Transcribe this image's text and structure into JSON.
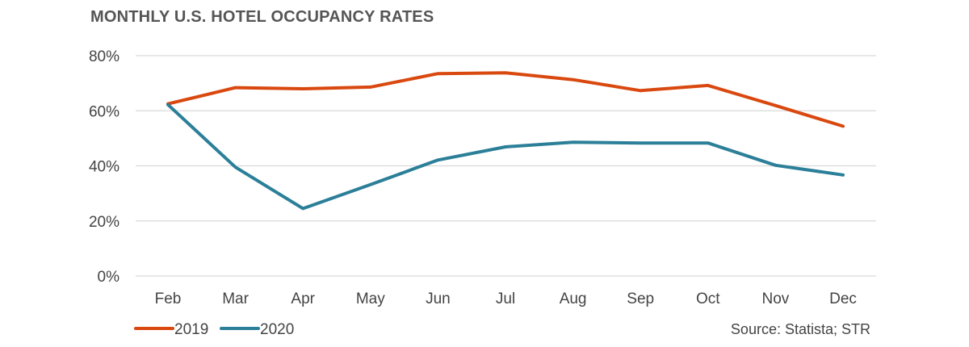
{
  "colors": {
    "series_2019": "#d9480f",
    "series_2020": "#2b7f98",
    "gridline": "#d9d9d9",
    "axis_text": "#444444",
    "title_text": "#555555"
  },
  "source_note": "Source: Statista; STR",
  "chart_data": {
    "type": "line",
    "title": "MONTHLY U.S. HOTEL OCCUPANCY RATES",
    "xlabel": "",
    "ylabel": "",
    "categories": [
      "Feb",
      "Mar",
      "Apr",
      "May",
      "Jun",
      "Jul",
      "Aug",
      "Sep",
      "Oct",
      "Nov",
      "Dec"
    ],
    "ylim": [
      0,
      80
    ],
    "yticks": [
      0,
      20,
      40,
      60,
      80
    ],
    "ytick_labels": [
      "0%",
      "20%",
      "40%",
      "60%",
      "80%"
    ],
    "grid": true,
    "legend_position": "bottom-left",
    "series": [
      {
        "name": "2019",
        "color": "#d9480f",
        "values": [
          62.5,
          68.4,
          68.0,
          68.6,
          73.5,
          73.8,
          71.3,
          67.3,
          69.2,
          61.9,
          54.4
        ]
      },
      {
        "name": "2020",
        "color": "#2b7f98",
        "values": [
          62.2,
          39.5,
          24.5,
          33.2,
          42.1,
          46.9,
          48.6,
          48.3,
          48.3,
          40.2,
          36.7
        ]
      }
    ]
  }
}
